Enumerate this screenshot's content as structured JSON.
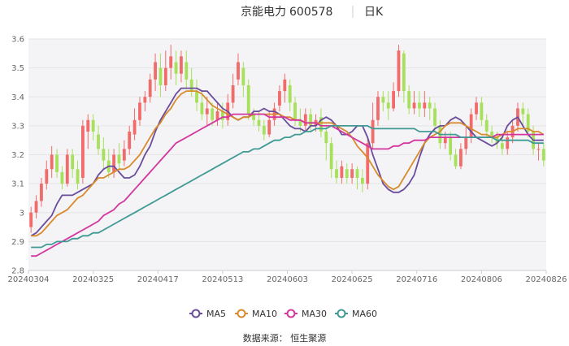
{
  "header": {
    "name": "京能电力",
    "code": "600578",
    "period": "日K"
  },
  "source": "数据来源： 恒生聚源",
  "colors": {
    "up": "#f26b6b",
    "down": "#a7e05a",
    "MA5": "#6a4c9c",
    "MA10": "#d88a2c",
    "MA30": "#d3369f",
    "MA60": "#3f9a95",
    "grid": "#e5e5e5",
    "plot_bg": "#f4f4f6"
  },
  "chart_data": {
    "type": "candlestick",
    "x_tick_labels": [
      "20240304",
      "20240325",
      "20240417",
      "20240513",
      "20240603",
      "20240625",
      "20240716",
      "20240806",
      "20240826"
    ],
    "ylim": [
      2.8,
      3.6
    ],
    "y_ticks": [
      2.8,
      2.9,
      3.0,
      3.1,
      3.2,
      3.3,
      3.4,
      3.5,
      3.6
    ],
    "y_tick_labels": [
      "2.8",
      "2.9",
      "3",
      "3.1",
      "3.2",
      "3.3",
      "3.4",
      "3.5",
      "3.6"
    ],
    "legend": [
      "MA5",
      "MA10",
      "MA30",
      "MA60"
    ],
    "ohlc": [
      [
        2.95,
        3.0,
        2.93,
        3.02
      ],
      [
        3.0,
        3.04,
        2.98,
        3.06
      ],
      [
        3.04,
        3.1,
        3.02,
        3.12
      ],
      [
        3.1,
        3.15,
        3.08,
        3.18
      ],
      [
        3.15,
        3.2,
        3.12,
        3.23
      ],
      [
        3.2,
        3.14,
        3.12,
        3.22
      ],
      [
        3.14,
        3.1,
        3.08,
        3.16
      ],
      [
        3.1,
        3.2,
        3.09,
        3.22
      ],
      [
        3.2,
        3.15,
        3.12,
        3.22
      ],
      [
        3.15,
        3.1,
        3.08,
        3.18
      ],
      [
        3.12,
        3.3,
        3.1,
        3.32
      ],
      [
        3.28,
        3.32,
        3.22,
        3.34
      ],
      [
        3.32,
        3.28,
        3.25,
        3.34
      ],
      [
        3.27,
        3.22,
        3.2,
        3.3
      ],
      [
        3.22,
        3.18,
        3.15,
        3.26
      ],
      [
        3.18,
        3.14,
        3.12,
        3.22
      ],
      [
        3.14,
        3.2,
        3.12,
        3.22
      ],
      [
        3.2,
        3.17,
        3.15,
        3.24
      ],
      [
        3.18,
        3.22,
        3.16,
        3.25
      ],
      [
        3.22,
        3.28,
        3.2,
        3.3
      ],
      [
        3.27,
        3.32,
        3.25,
        3.36
      ],
      [
        3.32,
        3.38,
        3.3,
        3.4
      ],
      [
        3.38,
        3.4,
        3.35,
        3.42
      ],
      [
        3.4,
        3.46,
        3.38,
        3.48
      ],
      [
        3.46,
        3.52,
        3.42,
        3.55
      ],
      [
        3.5,
        3.44,
        3.4,
        3.55
      ],
      [
        3.44,
        3.5,
        3.42,
        3.56
      ],
      [
        3.5,
        3.54,
        3.46,
        3.58
      ],
      [
        3.52,
        3.48,
        3.44,
        3.56
      ],
      [
        3.48,
        3.54,
        3.45,
        3.56
      ],
      [
        3.52,
        3.46,
        3.43,
        3.56
      ],
      [
        3.46,
        3.42,
        3.4,
        3.5
      ],
      [
        3.42,
        3.38,
        3.35,
        3.46
      ],
      [
        3.38,
        3.34,
        3.32,
        3.42
      ],
      [
        3.34,
        3.36,
        3.3,
        3.4
      ],
      [
        3.36,
        3.32,
        3.3,
        3.38
      ],
      [
        3.32,
        3.35,
        3.3,
        3.38
      ],
      [
        3.35,
        3.32,
        3.29,
        3.38
      ],
      [
        3.32,
        3.38,
        3.3,
        3.41
      ],
      [
        3.38,
        3.44,
        3.36,
        3.48
      ],
      [
        3.46,
        3.52,
        3.44,
        3.55
      ],
      [
        3.5,
        3.44,
        3.4,
        3.52
      ],
      [
        3.44,
        3.34,
        3.32,
        3.46
      ],
      [
        3.34,
        3.32,
        3.3,
        3.36
      ],
      [
        3.32,
        3.3,
        3.28,
        3.35
      ],
      [
        3.3,
        3.27,
        3.25,
        3.32
      ],
      [
        3.27,
        3.32,
        3.26,
        3.35
      ],
      [
        3.32,
        3.36,
        3.3,
        3.38
      ],
      [
        3.37,
        3.42,
        3.35,
        3.44
      ],
      [
        3.42,
        3.46,
        3.38,
        3.48
      ],
      [
        3.44,
        3.38,
        3.35,
        3.46
      ],
      [
        3.38,
        3.32,
        3.3,
        3.4
      ],
      [
        3.32,
        3.3,
        3.28,
        3.36
      ],
      [
        3.3,
        3.34,
        3.28,
        3.36
      ],
      [
        3.34,
        3.3,
        3.28,
        3.36
      ],
      [
        3.3,
        3.32,
        3.28,
        3.34
      ],
      [
        3.33,
        3.28,
        3.26,
        3.36
      ],
      [
        3.28,
        3.24,
        3.18,
        3.3
      ],
      [
        3.24,
        3.15,
        3.12,
        3.26
      ],
      [
        3.15,
        3.12,
        3.1,
        3.18
      ],
      [
        3.12,
        3.16,
        3.1,
        3.18
      ],
      [
        3.15,
        3.12,
        3.1,
        3.17
      ],
      [
        3.12,
        3.15,
        3.1,
        3.17
      ],
      [
        3.15,
        3.12,
        3.08,
        3.16
      ],
      [
        3.12,
        3.1,
        3.07,
        3.15
      ],
      [
        3.1,
        3.24,
        3.08,
        3.26
      ],
      [
        3.24,
        3.32,
        3.22,
        3.38
      ],
      [
        3.32,
        3.4,
        3.3,
        3.42
      ],
      [
        3.4,
        3.38,
        3.35,
        3.42
      ],
      [
        3.38,
        3.36,
        3.32,
        3.42
      ],
      [
        3.36,
        3.42,
        3.35,
        3.45
      ],
      [
        3.42,
        3.56,
        3.4,
        3.58
      ],
      [
        3.55,
        3.42,
        3.38,
        3.56
      ],
      [
        3.42,
        3.36,
        3.34,
        3.44
      ],
      [
        3.36,
        3.38,
        3.34,
        3.42
      ],
      [
        3.38,
        3.36,
        3.33,
        3.42
      ],
      [
        3.36,
        3.38,
        3.33,
        3.42
      ],
      [
        3.38,
        3.36,
        3.32,
        3.4
      ],
      [
        3.36,
        3.3,
        3.28,
        3.38
      ],
      [
        3.3,
        3.24,
        3.22,
        3.32
      ],
      [
        3.24,
        3.26,
        3.22,
        3.28
      ],
      [
        3.26,
        3.2,
        3.18,
        3.28
      ],
      [
        3.2,
        3.16,
        3.15,
        3.22
      ],
      [
        3.16,
        3.22,
        3.15,
        3.24
      ],
      [
        3.22,
        3.26,
        3.2,
        3.3
      ],
      [
        3.26,
        3.34,
        3.24,
        3.36
      ],
      [
        3.34,
        3.38,
        3.32,
        3.4
      ],
      [
        3.38,
        3.32,
        3.3,
        3.4
      ],
      [
        3.32,
        3.28,
        3.26,
        3.34
      ],
      [
        3.28,
        3.26,
        3.24,
        3.3
      ],
      [
        3.26,
        3.24,
        3.22,
        3.28
      ],
      [
        3.24,
        3.22,
        3.2,
        3.27
      ],
      [
        3.22,
        3.26,
        3.2,
        3.28
      ],
      [
        3.26,
        3.3,
        3.24,
        3.32
      ],
      [
        3.3,
        3.36,
        3.28,
        3.38
      ],
      [
        3.36,
        3.34,
        3.3,
        3.38
      ],
      [
        3.34,
        3.28,
        3.26,
        3.36
      ],
      [
        3.28,
        3.22,
        3.2,
        3.3
      ],
      [
        3.22,
        3.22,
        3.18,
        3.24
      ],
      [
        3.22,
        3.18,
        3.16,
        3.24
      ]
    ],
    "ma": {
      "MA5": [
        2.92,
        2.93,
        2.95,
        2.97,
        2.99,
        3.03,
        3.06,
        3.06,
        3.06,
        3.07,
        3.08,
        3.09,
        3.1,
        3.13,
        3.15,
        3.16,
        3.16,
        3.14,
        3.12,
        3.12,
        3.13,
        3.16,
        3.2,
        3.23,
        3.28,
        3.32,
        3.35,
        3.38,
        3.41,
        3.43,
        3.43,
        3.43,
        3.43,
        3.42,
        3.42,
        3.4,
        3.38,
        3.36,
        3.35,
        3.33,
        3.32,
        3.33,
        3.33,
        3.35,
        3.35,
        3.36,
        3.35,
        3.35,
        3.34,
        3.32,
        3.3,
        3.29,
        3.29,
        3.28,
        3.3,
        3.3,
        3.32,
        3.33,
        3.32,
        3.3,
        3.27,
        3.27,
        3.28,
        3.3,
        3.3,
        3.26,
        3.2,
        3.15,
        3.1,
        3.08,
        3.07,
        3.07,
        3.08,
        3.1,
        3.13,
        3.19,
        3.24,
        3.27,
        3.29,
        3.3,
        3.3,
        3.32,
        3.33,
        3.32,
        3.3,
        3.28,
        3.26,
        3.25,
        3.24,
        3.23,
        3.24,
        3.26,
        3.3,
        3.32,
        3.33,
        3.3,
        3.27,
        3.25,
        3.25,
        3.25
      ],
      "MA10": [
        2.92,
        2.92,
        2.93,
        2.95,
        2.97,
        2.99,
        3.0,
        3.01,
        3.03,
        3.05,
        3.06,
        3.08,
        3.1,
        3.12,
        3.12,
        3.13,
        3.14,
        3.15,
        3.15,
        3.16,
        3.18,
        3.2,
        3.23,
        3.26,
        3.29,
        3.31,
        3.34,
        3.36,
        3.39,
        3.41,
        3.42,
        3.42,
        3.42,
        3.41,
        3.39,
        3.37,
        3.36,
        3.35,
        3.34,
        3.33,
        3.32,
        3.33,
        3.33,
        3.34,
        3.34,
        3.34,
        3.34,
        3.34,
        3.34,
        3.33,
        3.33,
        3.32,
        3.32,
        3.31,
        3.31,
        3.31,
        3.31,
        3.31,
        3.31,
        3.3,
        3.29,
        3.28,
        3.26,
        3.23,
        3.21,
        3.19,
        3.16,
        3.13,
        3.11,
        3.09,
        3.08,
        3.09,
        3.12,
        3.15,
        3.18,
        3.21,
        3.24,
        3.26,
        3.27,
        3.28,
        3.3,
        3.31,
        3.31,
        3.31,
        3.3,
        3.29,
        3.28,
        3.27,
        3.27,
        3.26,
        3.26,
        3.27,
        3.28,
        3.28,
        3.29,
        3.29,
        3.29,
        3.28,
        3.28,
        3.27
      ],
      "MA30": [
        2.85,
        2.85,
        2.86,
        2.87,
        2.88,
        2.89,
        2.9,
        2.91,
        2.92,
        2.93,
        2.94,
        2.95,
        2.96,
        2.97,
        2.99,
        3.0,
        3.01,
        3.03,
        3.04,
        3.06,
        3.08,
        3.1,
        3.12,
        3.14,
        3.16,
        3.18,
        3.2,
        3.22,
        3.24,
        3.25,
        3.26,
        3.27,
        3.28,
        3.29,
        3.3,
        3.31,
        3.32,
        3.33,
        3.33,
        3.34,
        3.34,
        3.34,
        3.34,
        3.34,
        3.34,
        3.34,
        3.33,
        3.33,
        3.33,
        3.33,
        3.32,
        3.32,
        3.32,
        3.31,
        3.31,
        3.31,
        3.3,
        3.3,
        3.3,
        3.29,
        3.28,
        3.27,
        3.26,
        3.25,
        3.24,
        3.23,
        3.22,
        3.22,
        3.22,
        3.22,
        3.23,
        3.23,
        3.24,
        3.24,
        3.25,
        3.25,
        3.25,
        3.26,
        3.26,
        3.26,
        3.26,
        3.26,
        3.26,
        3.26,
        3.26,
        3.26,
        3.26,
        3.26,
        3.26,
        3.26,
        3.27,
        3.27,
        3.27,
        3.27,
        3.27,
        3.27,
        3.27,
        3.27,
        3.27,
        3.27
      ],
      "MA60": [
        2.88,
        2.88,
        2.88,
        2.89,
        2.89,
        2.9,
        2.9,
        2.9,
        2.91,
        2.91,
        2.92,
        2.92,
        2.93,
        2.93,
        2.94,
        2.95,
        2.96,
        2.97,
        2.98,
        2.99,
        3.0,
        3.01,
        3.02,
        3.03,
        3.04,
        3.05,
        3.06,
        3.07,
        3.08,
        3.09,
        3.1,
        3.11,
        3.12,
        3.13,
        3.14,
        3.15,
        3.16,
        3.17,
        3.18,
        3.19,
        3.2,
        3.21,
        3.21,
        3.22,
        3.22,
        3.23,
        3.24,
        3.25,
        3.25,
        3.26,
        3.26,
        3.27,
        3.27,
        3.28,
        3.28,
        3.29,
        3.29,
        3.29,
        3.3,
        3.3,
        3.3,
        3.3,
        3.3,
        3.3,
        3.3,
        3.3,
        3.29,
        3.29,
        3.29,
        3.29,
        3.29,
        3.29,
        3.29,
        3.29,
        3.29,
        3.28,
        3.28,
        3.28,
        3.28,
        3.27,
        3.27,
        3.27,
        3.27,
        3.26,
        3.26,
        3.26,
        3.26,
        3.26,
        3.26,
        3.26,
        3.25,
        3.25,
        3.25,
        3.25,
        3.25,
        3.25,
        3.25,
        3.24,
        3.24,
        3.24
      ]
    }
  }
}
